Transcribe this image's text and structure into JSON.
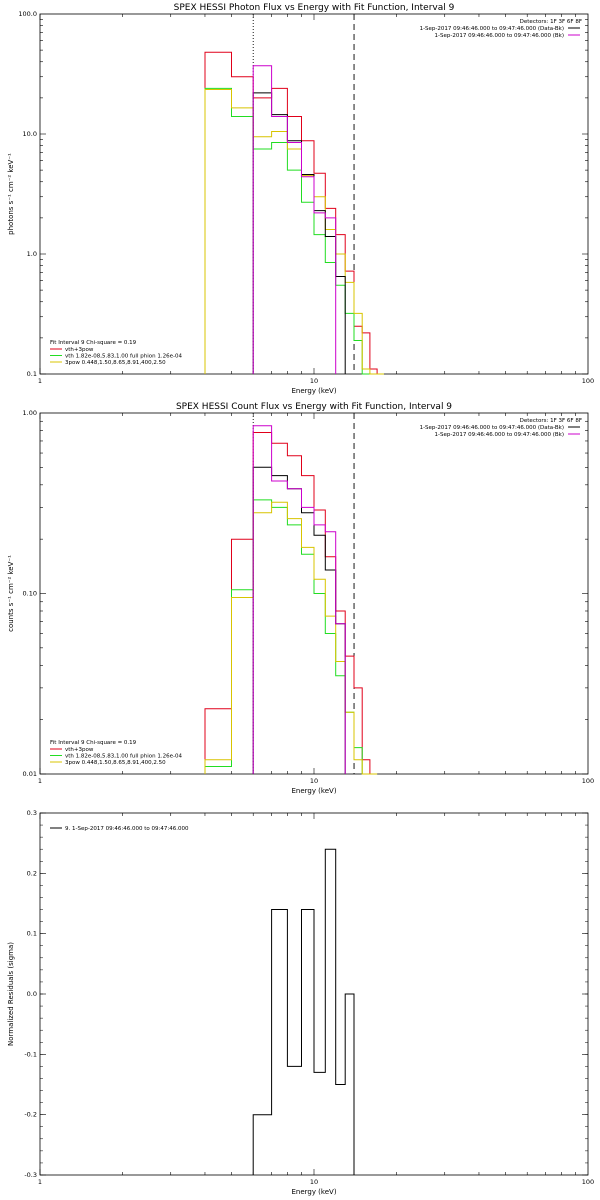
{
  "colors": {
    "black": "#000000",
    "red": "#e0001a",
    "green": "#22dd22",
    "yellow": "#d8c400",
    "magenta": "#cc00cc",
    "blue_dotted": "#2020ff"
  },
  "chart_data": [
    {
      "type": "line",
      "title": "SPEX HESSI Photon Flux vs Energy with Fit Function, Interval 9",
      "xlabel": "Energy (keV)",
      "ylabel": "photons s⁻¹ cm⁻² keV⁻¹",
      "xscale": "log",
      "yscale": "log",
      "xlim": [
        1,
        100
      ],
      "ylim": [
        0.1,
        100
      ],
      "xticks": [
        "1",
        "10",
        "100"
      ],
      "yticks": [
        "0.1",
        "1.0",
        "10.0",
        "100.0"
      ],
      "energy_edges": [
        4,
        5,
        6,
        7,
        8,
        9,
        10,
        11,
        12,
        13,
        14,
        15,
        16,
        17,
        18
      ],
      "series": [
        {
          "name": "vth+3pow",
          "color_key": "red",
          "values": [
            48,
            30,
            20,
            24,
            14,
            8.8,
            4.7,
            2.4,
            1.45,
            0.72,
            0.25,
            0.22,
            0.11,
            0.1
          ]
        },
        {
          "name": "vth 1.82e-08,5.83,1.00  full phion 1.26e-04",
          "color_key": "green",
          "values": [
            24,
            14,
            7.5,
            8.5,
            5.0,
            2.7,
            1.45,
            0.85,
            0.55,
            0.32,
            0.19,
            0.1,
            0.1,
            0.1
          ]
        },
        {
          "name": "3pow 0.448,1.50,8.65,8.91,400,2.50",
          "color_key": "yellow",
          "values": [
            23.5,
            16.5,
            9.5,
            10.5,
            7.5,
            4.5,
            3.0,
            1.6,
            1.0,
            0.58,
            0.32,
            0.11,
            0.1,
            0.1
          ]
        },
        {
          "name": "data (Data-Bk)",
          "color_key": "black",
          "values": [
            null,
            null,
            22,
            14.5,
            8.8,
            4.6,
            2.3,
            1.4,
            0.65,
            null,
            null,
            null,
            null,
            null
          ]
        },
        {
          "name": "Bk",
          "color_key": "magenta",
          "values": [
            null,
            null,
            37,
            14,
            8.5,
            4.4,
            2.2,
            2.0,
            null,
            null,
            null,
            null,
            null,
            null
          ]
        }
      ],
      "vlines": [
        {
          "x": 6,
          "style": "dotted",
          "color_key": "black"
        },
        {
          "x": 14,
          "style": "dashed",
          "color_key": "black"
        }
      ],
      "legend_right": {
        "detectors": "Detectors: 1F 3F 6F 8F",
        "line1": "1-Sep-2017 09:46:46.000 to 09:47:46.000 (Data-Bk)",
        "line2": "1-Sep-2017 09:46:46.000 to 09:47:46.000 (Bk)"
      },
      "legend_left": {
        "header": "Fit Interval  9     Chi-square = 0.19",
        "items": [
          "vth+3pow",
          "vth 1.82e-08,5.83,1.00  full phion 1.26e-04",
          "3pow 0.448,1.50,8.65,8.91,400,2.50"
        ]
      }
    },
    {
      "type": "line",
      "title": "SPEX HESSI Count Flux vs Energy with Fit Function, Interval 9",
      "xlabel": "Energy (keV)",
      "ylabel": "counts s⁻¹ cm⁻² keV⁻¹",
      "xscale": "log",
      "yscale": "log",
      "xlim": [
        1,
        100
      ],
      "ylim": [
        0.01,
        1.0
      ],
      "xticks": [
        "1",
        "10",
        "100"
      ],
      "yticks": [
        "0.01",
        "0.10",
        "1.00"
      ],
      "energy_edges": [
        4,
        5,
        6,
        7,
        8,
        9,
        10,
        11,
        12,
        13,
        14,
        15,
        16,
        17,
        18
      ],
      "series": [
        {
          "name": "vth+3pow",
          "color_key": "red",
          "values": [
            0.023,
            0.2,
            0.78,
            0.68,
            0.58,
            0.45,
            0.29,
            0.16,
            0.08,
            0.045,
            0.03,
            0.012,
            0.01
          ]
        },
        {
          "name": "vth 1.82e-08,5.83,1.00  full phion 1.26e-04",
          "color_key": "green",
          "values": [
            0.011,
            0.105,
            0.33,
            0.3,
            0.24,
            0.165,
            0.1,
            0.06,
            0.035,
            0.022,
            0.014,
            0.01,
            0.01
          ]
        },
        {
          "name": "3pow 0.448,1.50,8.65,8.91,400,2.50",
          "color_key": "yellow",
          "values": [
            0.012,
            0.095,
            0.28,
            0.32,
            0.26,
            0.18,
            0.12,
            0.075,
            0.042,
            0.022,
            0.012,
            0.01,
            0.01
          ]
        },
        {
          "name": "data (Data-Bk)",
          "color_key": "black",
          "values": [
            null,
            null,
            0.5,
            0.45,
            0.38,
            0.28,
            0.21,
            0.135,
            0.068,
            null,
            null,
            null,
            null
          ]
        },
        {
          "name": "Bk",
          "color_key": "magenta",
          "values": [
            null,
            null,
            0.85,
            0.42,
            0.38,
            0.3,
            0.24,
            0.22,
            0.068,
            null,
            null,
            null,
            null
          ]
        }
      ],
      "vlines": [
        {
          "x": 6,
          "style": "dotted",
          "color_key": "black"
        },
        {
          "x": 14,
          "style": "dashed",
          "color_key": "black"
        }
      ],
      "legend_right": {
        "detectors": "Detectors: 1F 3F 6F 8F",
        "line1": "1-Sep-2017 09:46:46.000 to 09:47:46.000 (Data-Bk)",
        "line2": "1-Sep-2017 09:46:46.000 to 09:47:46.000 (Bk)"
      },
      "legend_left": {
        "header": "Fit Interval  9     Chi-square = 0.19",
        "items": [
          "vth+3pow",
          "vth 1.82e-08,5.83,1.00  full phion 1.26e-04",
          "3pow 0.448,1.50,8.65,8.91,400,2.50"
        ]
      }
    },
    {
      "type": "line",
      "title": "",
      "xlabel": "Energy (keV)",
      "ylabel": "Normalized Residuals (sigma)",
      "xscale": "log",
      "xlim": [
        1,
        100
      ],
      "ylim": [
        -0.3,
        0.3
      ],
      "xticks": [
        "1",
        "10",
        "100"
      ],
      "yticks": [
        "-0.3",
        "-0.2",
        "-0.1",
        "0.0",
        "0.1",
        "0.2",
        "0.3"
      ],
      "energy_edges": [
        6,
        7,
        8,
        9,
        10,
        11,
        12,
        13,
        14
      ],
      "series": [
        {
          "name": "9.  1-Sep-2017 09:46:46.000 to 09:47:46.000",
          "color_key": "black",
          "values": [
            -0.2,
            0.14,
            -0.12,
            0.14,
            -0.13,
            0.24,
            -0.15,
            0.0
          ]
        }
      ]
    }
  ]
}
